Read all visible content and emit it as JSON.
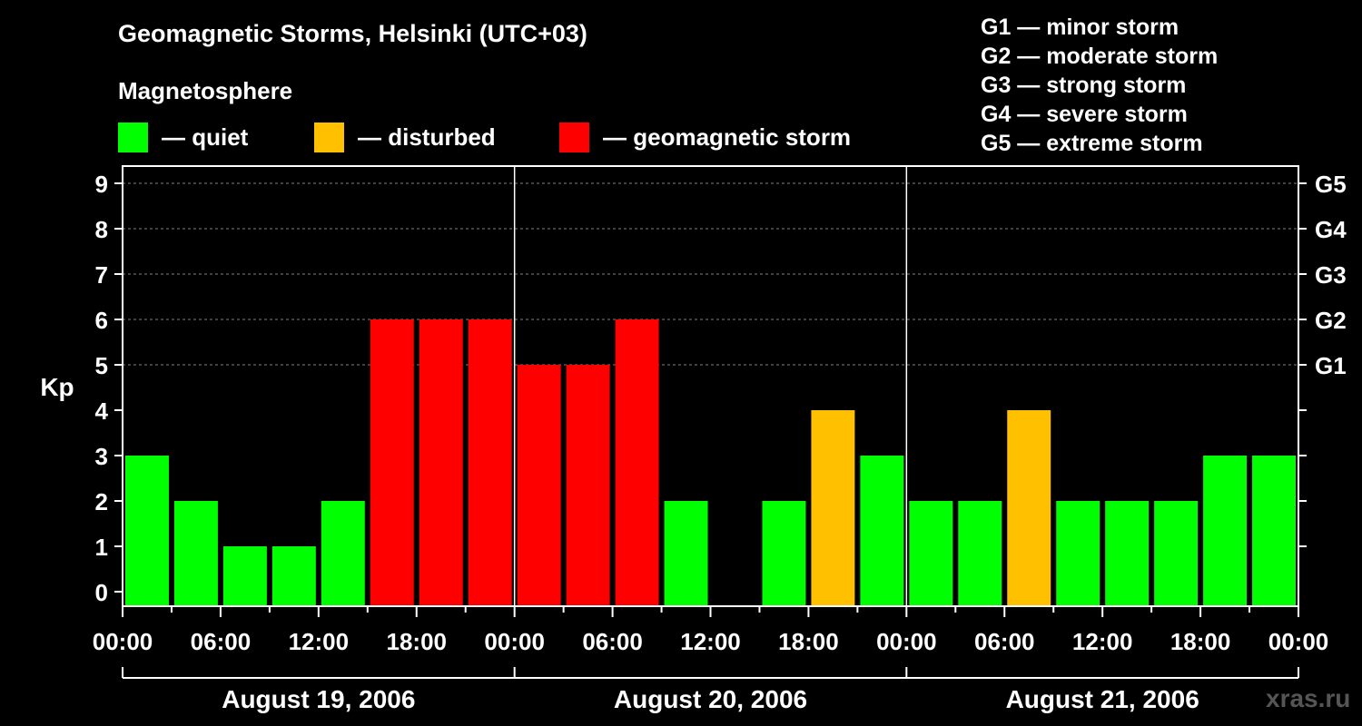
{
  "header": {
    "title": "Geomagnetic Storms, Helsinki (UTC+03)",
    "subtitle": "Magnetosphere"
  },
  "legend": [
    {
      "label": "— quiet",
      "color": "#00ff00"
    },
    {
      "label": "— disturbed",
      "color": "#ffc000"
    },
    {
      "label": "— geomagnetic storm",
      "color": "#ff0000"
    }
  ],
  "storm_scale": [
    "G1 — minor storm",
    "G2 — moderate storm",
    "G3 — strong storm",
    "G4 — severe storm",
    "G5 — extreme storm"
  ],
  "watermark": "xras.ru",
  "colors": {
    "quiet": "#00ff00",
    "disturbed": "#ffc000",
    "storm": "#ff0000",
    "background": "#000000",
    "grid": "#808080"
  },
  "chart_data": {
    "type": "bar",
    "ylabel": "Kp",
    "ylim": [
      0,
      9
    ],
    "y_ticks": [
      "0",
      "1",
      "2",
      "3",
      "4",
      "5",
      "6",
      "7",
      "8",
      "9"
    ],
    "g_ticks": [
      {
        "kp": 5,
        "label": "G1"
      },
      {
        "kp": 6,
        "label": "G2"
      },
      {
        "kp": 7,
        "label": "G3"
      },
      {
        "kp": 8,
        "label": "G4"
      },
      {
        "kp": 9,
        "label": "G5"
      }
    ],
    "x_tick_labels": [
      "00:00",
      "06:00",
      "12:00",
      "18:00",
      "00:00",
      "06:00",
      "12:00",
      "18:00",
      "00:00",
      "06:00",
      "12:00",
      "18:00",
      "00:00"
    ],
    "days": [
      "August 19, 2006",
      "August 20, 2006",
      "August 21, 2006"
    ],
    "interval_hours": 3,
    "values": [
      3,
      2,
      1,
      1,
      2,
      6,
      6,
      6,
      5,
      5,
      6,
      2,
      0,
      2,
      4,
      3,
      2,
      2,
      4,
      2,
      2,
      2,
      3,
      3
    ],
    "grid": "dashed horizontal"
  }
}
